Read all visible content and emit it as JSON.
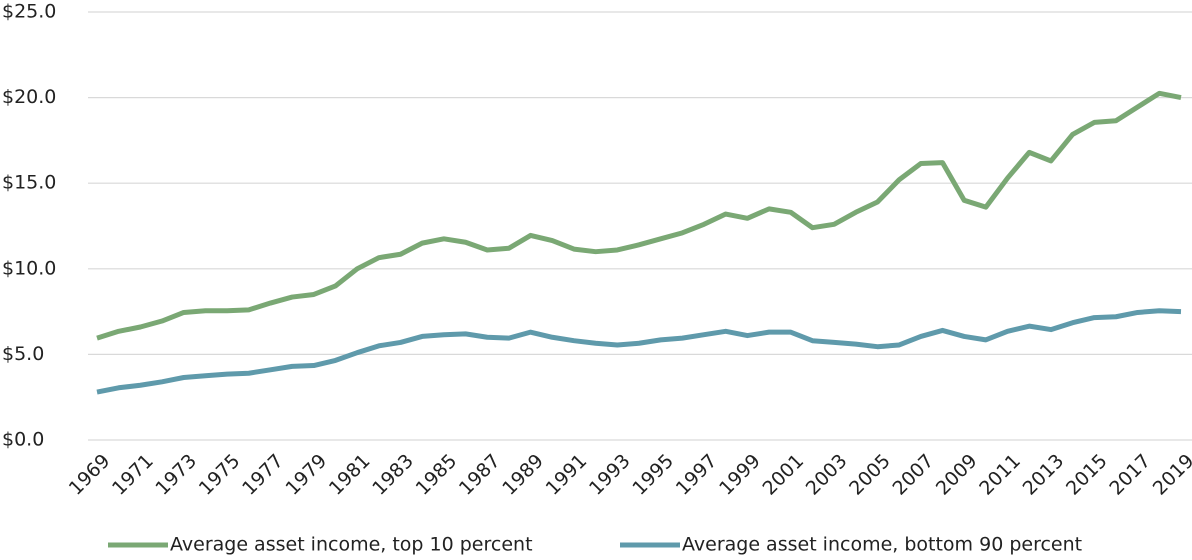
{
  "chart_data": {
    "type": "line",
    "x": [
      1969,
      1970,
      1971,
      1972,
      1973,
      1974,
      1975,
      1976,
      1977,
      1978,
      1979,
      1980,
      1981,
      1982,
      1983,
      1984,
      1985,
      1986,
      1987,
      1988,
      1989,
      1990,
      1991,
      1992,
      1993,
      1994,
      1995,
      1996,
      1997,
      1998,
      1999,
      2000,
      2001,
      2002,
      2003,
      2004,
      2005,
      2006,
      2007,
      2008,
      2009,
      2010,
      2011,
      2012,
      2013,
      2014,
      2015,
      2016,
      2017,
      2018,
      2019
    ],
    "xlim": [
      1969,
      2019
    ],
    "xticks": [
      1969,
      1971,
      1973,
      1975,
      1977,
      1979,
      1981,
      1983,
      1985,
      1987,
      1989,
      1991,
      1993,
      1995,
      1997,
      1999,
      2001,
      2003,
      2005,
      2007,
      2009,
      2011,
      2013,
      2015,
      2017,
      2019
    ],
    "ylim": [
      0,
      25
    ],
    "yticks": [
      {
        "value": 0,
        "label": "$0.0"
      },
      {
        "value": 5,
        "label": "$5.0"
      },
      {
        "value": 10,
        "label": "$10.0"
      },
      {
        "value": 15,
        "label": "$15.0"
      },
      {
        "value": 20,
        "label": "$20.0"
      },
      {
        "value": 25,
        "label": "$25.0"
      }
    ],
    "grid": true,
    "legend": "bottom",
    "series": [
      {
        "name": "Average asset income, top 10 percent",
        "color": "#7aa874",
        "values": [
          5.95,
          6.35,
          6.6,
          6.95,
          7.45,
          7.55,
          7.55,
          7.6,
          8.0,
          8.35,
          8.5,
          9.0,
          10.0,
          10.65,
          10.85,
          11.5,
          11.75,
          11.55,
          11.1,
          11.2,
          11.95,
          11.65,
          11.15,
          11.0,
          11.1,
          11.4,
          11.75,
          12.1,
          12.6,
          13.2,
          12.95,
          13.5,
          13.3,
          12.4,
          12.6,
          13.3,
          13.9,
          15.2,
          16.15,
          16.2,
          14.0,
          13.6,
          15.3,
          16.8,
          16.3,
          17.85,
          18.55,
          18.65,
          19.45,
          20.25,
          20.0
        ]
      },
      {
        "name": "Average asset income, bottom 90 percent",
        "color": "#5f9aab",
        "values": [
          2.8,
          3.05,
          3.2,
          3.4,
          3.65,
          3.75,
          3.85,
          3.9,
          4.1,
          4.3,
          4.35,
          4.65,
          5.1,
          5.5,
          5.7,
          6.05,
          6.15,
          6.2,
          6.0,
          5.95,
          6.3,
          6.0,
          5.8,
          5.65,
          5.55,
          5.65,
          5.85,
          5.95,
          6.15,
          6.35,
          6.1,
          6.3,
          6.3,
          5.8,
          5.7,
          5.6,
          5.45,
          5.55,
          6.05,
          6.4,
          6.05,
          5.85,
          6.35,
          6.65,
          6.45,
          6.85,
          7.15,
          7.2,
          7.45,
          7.55,
          7.5
        ]
      }
    ]
  }
}
